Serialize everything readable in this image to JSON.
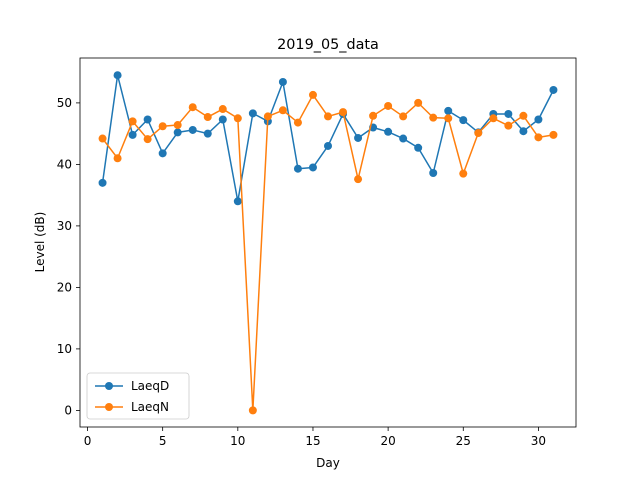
{
  "chart_data": {
    "type": "line",
    "title": "2019_05_data",
    "xlabel": "Day",
    "ylabel": "Level (dB)",
    "xlim": [
      -0.5,
      32.5
    ],
    "ylim": [
      -2.7,
      57.3
    ],
    "xticks": [
      0,
      5,
      10,
      15,
      20,
      25,
      30
    ],
    "yticks": [
      0,
      10,
      20,
      30,
      40,
      50
    ],
    "grid": false,
    "legend_position": "lower-left",
    "x": [
      1,
      2,
      3,
      4,
      5,
      6,
      7,
      8,
      9,
      10,
      11,
      12,
      13,
      14,
      15,
      16,
      17,
      18,
      19,
      20,
      21,
      22,
      23,
      24,
      25,
      26,
      27,
      28,
      29,
      30,
      31
    ],
    "series": [
      {
        "name": "LaeqD",
        "color": "#1f77b4",
        "marker": "circle",
        "values": [
          37.0,
          54.5,
          44.8,
          47.3,
          41.8,
          45.2,
          45.6,
          45.0,
          47.3,
          34.0,
          48.3,
          47.0,
          53.4,
          39.3,
          39.5,
          43.0,
          48.2,
          44.3,
          46.0,
          45.3,
          44.2,
          42.7,
          38.6,
          48.7,
          47.2,
          45.2,
          48.2,
          48.2,
          45.4,
          47.3,
          52.1
        ]
      },
      {
        "name": "LaeqN",
        "color": "#ff7f0e",
        "marker": "circle",
        "values": [
          44.2,
          41.0,
          47.0,
          44.1,
          46.2,
          46.4,
          49.3,
          47.7,
          49.0,
          47.5,
          0.0,
          47.8,
          48.8,
          46.8,
          51.3,
          47.8,
          48.5,
          37.6,
          47.9,
          49.5,
          47.8,
          50.0,
          47.6,
          47.5,
          38.5,
          45.1,
          47.5,
          46.3,
          47.9,
          44.4,
          44.8
        ]
      }
    ]
  }
}
